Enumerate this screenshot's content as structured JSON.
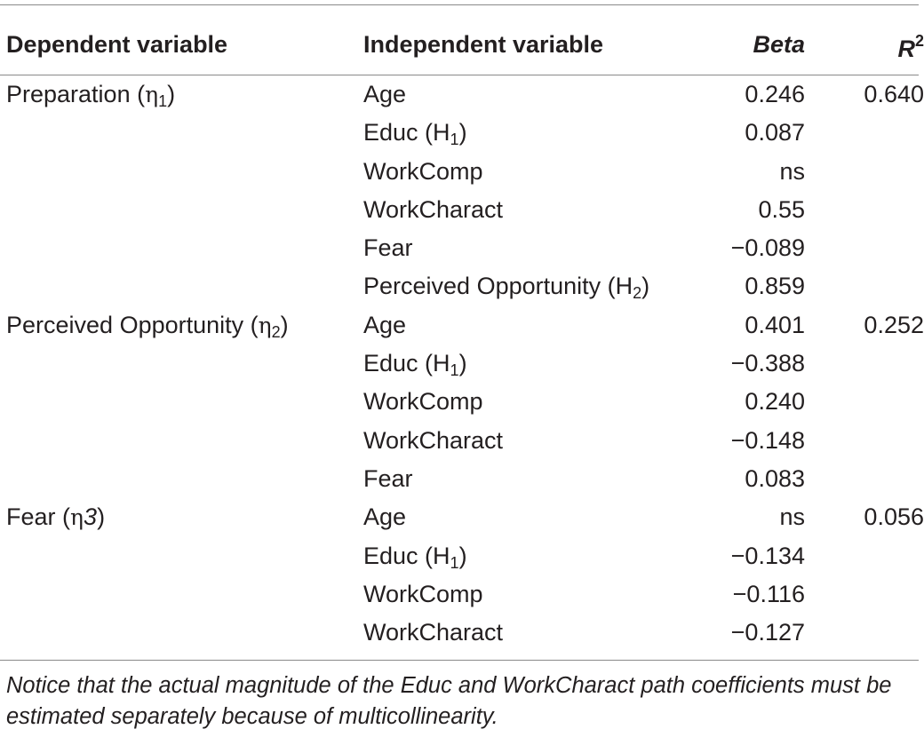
{
  "table": {
    "headers": {
      "dependent": "Dependent variable",
      "independent": "Independent variable",
      "beta": "Beta",
      "r2_base": "R",
      "r2_exp": "2"
    },
    "groups": [
      {
        "label": "Preparation",
        "eta_prefix": "(",
        "eta_symbol": "η",
        "eta_sub": "1",
        "eta_suffix": ")",
        "r2": "0.640",
        "rows": [
          {
            "name": "Age",
            "sub": "",
            "tail": "",
            "beta": "0.246"
          },
          {
            "name": "Educ (H",
            "sub": "1",
            "tail": ")",
            "beta": "0.087"
          },
          {
            "name": "WorkComp",
            "sub": "",
            "tail": "",
            "beta": "ns"
          },
          {
            "name": "WorkCharact",
            "sub": "",
            "tail": "",
            "beta": "0.55"
          },
          {
            "name": "Fear",
            "sub": "",
            "tail": "",
            "beta": "−0.089"
          },
          {
            "name": "Perceived Opportunity (H",
            "sub": "2",
            "tail": ")",
            "beta": "0.859"
          }
        ]
      },
      {
        "label": "Perceived Opportunity",
        "eta_prefix": "(",
        "eta_symbol": "η",
        "eta_sub": "2",
        "eta_suffix": ")",
        "r2": "0.252",
        "rows": [
          {
            "name": "Age",
            "sub": "",
            "tail": "",
            "beta": "0.401"
          },
          {
            "name": "Educ (H",
            "sub": "1",
            "tail": ")",
            "beta": "−0.388"
          },
          {
            "name": "WorkComp",
            "sub": "",
            "tail": "",
            "beta": "0.240"
          },
          {
            "name": "WorkCharact",
            "sub": "",
            "tail": "",
            "beta": "−0.148"
          },
          {
            "name": "Fear",
            "sub": "",
            "tail": "",
            "beta": "0.083"
          }
        ]
      },
      {
        "label": "Fear",
        "eta_prefix": "(",
        "eta_symbol": "η",
        "eta_italic": "3",
        "eta_suffix": ")",
        "r2": "0.056",
        "rows": [
          {
            "name": "Age",
            "sub": "",
            "tail": "",
            "beta": "ns"
          },
          {
            "name": "Educ (H",
            "sub": "1",
            "tail": ")",
            "beta": "−0.134"
          },
          {
            "name": "WorkComp",
            "sub": "",
            "tail": "",
            "beta": "−0.116"
          },
          {
            "name": "WorkCharact",
            "sub": "",
            "tail": "",
            "beta": "−0.127"
          }
        ]
      }
    ]
  },
  "note": "Notice that the actual magnitude of the Educ and WorkCharact path coefficients must be estimated separately because of multicollinearity."
}
